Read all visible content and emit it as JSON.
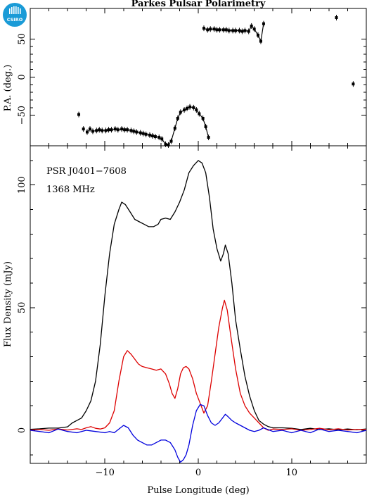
{
  "logo": {
    "text": "CSIRO",
    "color": "#1a9bd7"
  },
  "chart_data": [
    {
      "type": "scatter",
      "title": "Parkes Pulsar Polarimetry",
      "xlabel": "",
      "ylabel": "P.A. (deg.)",
      "xlim": [
        -18,
        18
      ],
      "ylim": [
        -90,
        90
      ],
      "yticks": [
        -50,
        0,
        50
      ],
      "ytick_labels": [
        "−50",
        "0",
        "50"
      ],
      "series": [
        {
          "connected": true,
          "points": [
            [
              -11.9,
              -72
            ],
            [
              -11.6,
              -68
            ],
            [
              -11.3,
              -71
            ],
            [
              -10.9,
              -70
            ],
            [
              -10.6,
              -69
            ],
            [
              -10.3,
              -70
            ],
            [
              -9.9,
              -70
            ],
            [
              -9.6,
              -69
            ],
            [
              -9.3,
              -69
            ],
            [
              -8.9,
              -68
            ],
            [
              -8.6,
              -69
            ],
            [
              -8.2,
              -68
            ],
            [
              -7.9,
              -69
            ],
            [
              -7.6,
              -69
            ],
            [
              -7.2,
              -70
            ],
            [
              -6.9,
              -71
            ],
            [
              -6.6,
              -72
            ],
            [
              -6.2,
              -73
            ],
            [
              -5.9,
              -74
            ],
            [
              -5.6,
              -75
            ],
            [
              -5.2,
              -76
            ],
            [
              -4.9,
              -77
            ],
            [
              -4.6,
              -78
            ],
            [
              -4.2,
              -79
            ],
            [
              -3.9,
              -81
            ],
            [
              -3.5,
              -88
            ],
            [
              -3.2,
              -89
            ],
            [
              -2.9,
              -84
            ],
            [
              -2.5,
              -67
            ],
            [
              -2.2,
              -54
            ],
            [
              -1.9,
              -46
            ],
            [
              -1.5,
              -43
            ],
            [
              -1.2,
              -41
            ],
            [
              -0.9,
              -39
            ],
            [
              -0.5,
              -40
            ],
            [
              -0.2,
              -43
            ],
            [
              0.1,
              -48
            ],
            [
              0.5,
              -54
            ],
            [
              0.8,
              -65
            ],
            [
              1.1,
              -79
            ]
          ]
        },
        {
          "connected": true,
          "points": [
            [
              0.6,
              64
            ],
            [
              1.0,
              62
            ],
            [
              1.3,
              63
            ],
            [
              1.7,
              63
            ],
            [
              2.0,
              62
            ],
            [
              2.3,
              62
            ],
            [
              2.7,
              62
            ],
            [
              3.0,
              62
            ],
            [
              3.3,
              61
            ],
            [
              3.7,
              61
            ],
            [
              4.0,
              61
            ],
            [
              4.4,
              61
            ],
            [
              4.7,
              60
            ],
            [
              5.0,
              61
            ],
            [
              5.4,
              60
            ],
            [
              5.7,
              67
            ],
            [
              6.0,
              63
            ],
            [
              6.4,
              55
            ],
            [
              6.7,
              47
            ],
            [
              7.0,
              70
            ]
          ]
        },
        {
          "connected": false,
          "points": [
            [
              -12.8,
              -49
            ],
            [
              -12.3,
              -68
            ],
            [
              14.8,
              78
            ],
            [
              16.6,
              -9
            ]
          ]
        }
      ]
    },
    {
      "type": "line",
      "title": "",
      "xlabel": "Pulse Longitude (deg)",
      "ylabel": "Flux Density (mJy)",
      "xlim": [
        -18,
        18
      ],
      "ylim": [
        -13.5,
        116
      ],
      "xticks": [
        -10,
        0,
        10
      ],
      "xtick_labels": [
        "−10",
        "0",
        "10"
      ],
      "yticks": [
        0,
        50,
        100
      ],
      "ytick_labels": [
        "0",
        "50",
        "100"
      ],
      "annotations": [
        "PSR J0401−7608",
        "1368 MHz"
      ],
      "series": [
        {
          "color": "#000000",
          "points": [
            [
              -18,
              0.4
            ],
            [
              -17,
              0.6
            ],
            [
              -16,
              0.9
            ],
            [
              -15,
              0.9
            ],
            [
              -14,
              1.4
            ],
            [
              -13.5,
              3
            ],
            [
              -13,
              4
            ],
            [
              -12.5,
              5
            ],
            [
              -12,
              8
            ],
            [
              -11.5,
              12
            ],
            [
              -11,
              20
            ],
            [
              -10.5,
              35
            ],
            [
              -10,
              55
            ],
            [
              -9.5,
              72
            ],
            [
              -9,
              84
            ],
            [
              -8.5,
              90
            ],
            [
              -8.2,
              93
            ],
            [
              -7.8,
              92
            ],
            [
              -7.3,
              89
            ],
            [
              -6.8,
              86
            ],
            [
              -6.3,
              85
            ],
            [
              -5.8,
              84
            ],
            [
              -5.3,
              83
            ],
            [
              -4.8,
              83
            ],
            [
              -4.3,
              84
            ],
            [
              -4,
              86
            ],
            [
              -3.5,
              86.5
            ],
            [
              -3,
              86
            ],
            [
              -2.5,
              89
            ],
            [
              -2,
              93
            ],
            [
              -1.5,
              98
            ],
            [
              -1,
              105
            ],
            [
              -0.5,
              108
            ],
            [
              0,
              110
            ],
            [
              0.4,
              109
            ],
            [
              0.8,
              105
            ],
            [
              1.2,
              95
            ],
            [
              1.6,
              82
            ],
            [
              2,
              74
            ],
            [
              2.4,
              69
            ],
            [
              2.7,
              72
            ],
            [
              2.9,
              75.5
            ],
            [
              3.2,
              72
            ],
            [
              3.6,
              60
            ],
            [
              4,
              45
            ],
            [
              4.5,
              33
            ],
            [
              5,
              22
            ],
            [
              5.5,
              14
            ],
            [
              6,
              8
            ],
            [
              6.5,
              4
            ],
            [
              7,
              2.5
            ],
            [
              7.5,
              1.5
            ],
            [
              8,
              1
            ],
            [
              9,
              1
            ],
            [
              10,
              0.8
            ],
            [
              11,
              0.3
            ],
            [
              12,
              0.8
            ],
            [
              13,
              0.3
            ],
            [
              14,
              0.6
            ],
            [
              15,
              0.2
            ],
            [
              16,
              0.5
            ],
            [
              17,
              0.2
            ],
            [
              18,
              0.5
            ]
          ]
        },
        {
          "color": "#dd0000",
          "points": [
            [
              -18,
              0.1
            ],
            [
              -17,
              0.3
            ],
            [
              -16,
              0
            ],
            [
              -15,
              0.5
            ],
            [
              -14,
              0.1
            ],
            [
              -13,
              0.6
            ],
            [
              -12.5,
              0.3
            ],
            [
              -12,
              1
            ],
            [
              -11.5,
              1.5
            ],
            [
              -11,
              0.8
            ],
            [
              -10.5,
              0.5
            ],
            [
              -10,
              1
            ],
            [
              -9.5,
              3
            ],
            [
              -9,
              8
            ],
            [
              -8.5,
              20
            ],
            [
              -8,
              30
            ],
            [
              -7.6,
              32.5
            ],
            [
              -7.2,
              31
            ],
            [
              -6.8,
              29
            ],
            [
              -6.4,
              27
            ],
            [
              -6,
              26
            ],
            [
              -5.5,
              25.5
            ],
            [
              -5,
              25
            ],
            [
              -4.5,
              24.5
            ],
            [
              -4,
              25
            ],
            [
              -3.5,
              23
            ],
            [
              -3.1,
              19
            ],
            [
              -2.8,
              15
            ],
            [
              -2.5,
              13
            ],
            [
              -2.2,
              17
            ],
            [
              -1.9,
              23
            ],
            [
              -1.6,
              25.5
            ],
            [
              -1.3,
              26
            ],
            [
              -1,
              25
            ],
            [
              -0.6,
              21
            ],
            [
              -0.2,
              15
            ],
            [
              0.2,
              11
            ],
            [
              0.6,
              7
            ],
            [
              1,
              10
            ],
            [
              1.4,
              20
            ],
            [
              1.8,
              31
            ],
            [
              2.2,
              42
            ],
            [
              2.6,
              50
            ],
            [
              2.8,
              53
            ],
            [
              3.1,
              49
            ],
            [
              3.5,
              38
            ],
            [
              4,
              25
            ],
            [
              4.5,
              15
            ],
            [
              5,
              10
            ],
            [
              5.5,
              7
            ],
            [
              6,
              5
            ],
            [
              6.5,
              3
            ],
            [
              7,
              1
            ],
            [
              7.5,
              0
            ],
            [
              8,
              0.5
            ],
            [
              9,
              0.3
            ],
            [
              10,
              0.6
            ],
            [
              11,
              0
            ],
            [
              12,
              0.3
            ],
            [
              13,
              0.8
            ],
            [
              14,
              0.2
            ],
            [
              15,
              0.6
            ],
            [
              16,
              0.1
            ],
            [
              17,
              0.3
            ],
            [
              18,
              0.4
            ]
          ]
        },
        {
          "color": "#0000dd",
          "points": [
            [
              -18,
              0
            ],
            [
              -17,
              -0.5
            ],
            [
              -16,
              -1
            ],
            [
              -15,
              0.5
            ],
            [
              -14,
              -0.5
            ],
            [
              -13,
              -1
            ],
            [
              -12,
              0
            ],
            [
              -11,
              -0.5
            ],
            [
              -10,
              -1
            ],
            [
              -9.5,
              -0.5
            ],
            [
              -9,
              -1
            ],
            [
              -8.5,
              0.5
            ],
            [
              -8,
              2
            ],
            [
              -7.5,
              1
            ],
            [
              -7,
              -2
            ],
            [
              -6.5,
              -4
            ],
            [
              -6,
              -5
            ],
            [
              -5.5,
              -6
            ],
            [
              -5,
              -6
            ],
            [
              -4.5,
              -5
            ],
            [
              -4,
              -4
            ],
            [
              -3.5,
              -4
            ],
            [
              -3,
              -5
            ],
            [
              -2.5,
              -8
            ],
            [
              -2.2,
              -11
            ],
            [
              -1.9,
              -13
            ],
            [
              -1.6,
              -12
            ],
            [
              -1.3,
              -10
            ],
            [
              -1,
              -6
            ],
            [
              -0.6,
              2
            ],
            [
              -0.2,
              8
            ],
            [
              0.2,
              10.5
            ],
            [
              0.6,
              10
            ],
            [
              1,
              6
            ],
            [
              1.4,
              3
            ],
            [
              1.8,
              2
            ],
            [
              2.2,
              3
            ],
            [
              2.6,
              5
            ],
            [
              2.9,
              6.5
            ],
            [
              3.2,
              5.5
            ],
            [
              3.6,
              4
            ],
            [
              4,
              3
            ],
            [
              4.5,
              2
            ],
            [
              5,
              1
            ],
            [
              5.5,
              0
            ],
            [
              6,
              -0.5
            ],
            [
              6.5,
              0
            ],
            [
              7,
              1
            ],
            [
              8,
              -0.5
            ],
            [
              9,
              0
            ],
            [
              10,
              -1
            ],
            [
              11,
              0
            ],
            [
              12,
              -1
            ],
            [
              13,
              0.5
            ],
            [
              14,
              -0.5
            ],
            [
              15,
              0
            ],
            [
              16,
              -0.5
            ],
            [
              17,
              -1
            ],
            [
              18,
              0
            ]
          ]
        }
      ]
    }
  ]
}
